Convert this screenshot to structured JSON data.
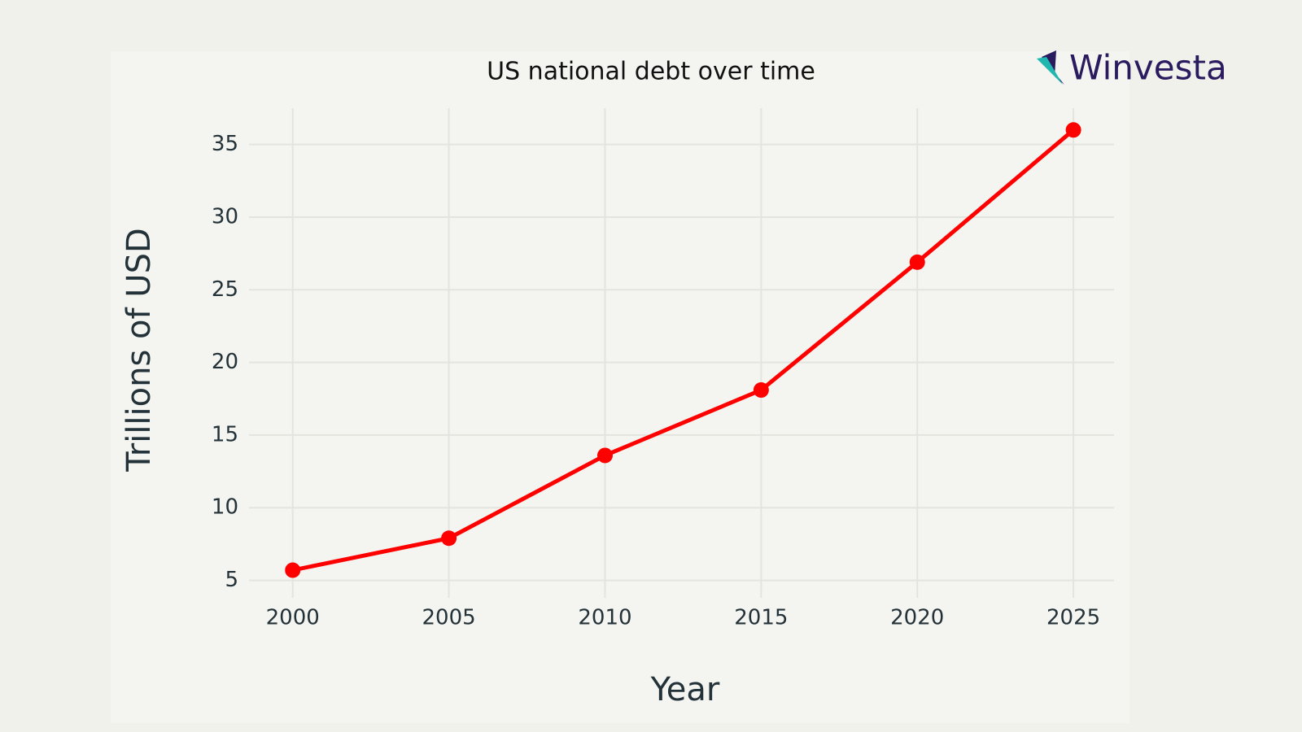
{
  "chart_data": {
    "type": "line",
    "title": "US national debt over time",
    "x_label": "Year",
    "y_label": "Trillions of USD",
    "logo": "Winvesta",
    "x": [
      2000,
      2005,
      2010,
      2015,
      2020,
      2025
    ],
    "series": [
      {
        "color": "#ff0000",
        "values": [
          5.7,
          7.9,
          13.6,
          18.1,
          26.9,
          36.0
        ]
      }
    ],
    "xlim": [
      1998.6,
      2026.3
    ],
    "xticks": [
      2000,
      2005,
      2010,
      2015,
      2020,
      2025
    ],
    "ylim": [
      3.8,
      37.5
    ],
    "yticks": [
      5,
      10,
      15,
      20,
      25,
      30,
      35
    ],
    "grid": true,
    "markers": true
  }
}
